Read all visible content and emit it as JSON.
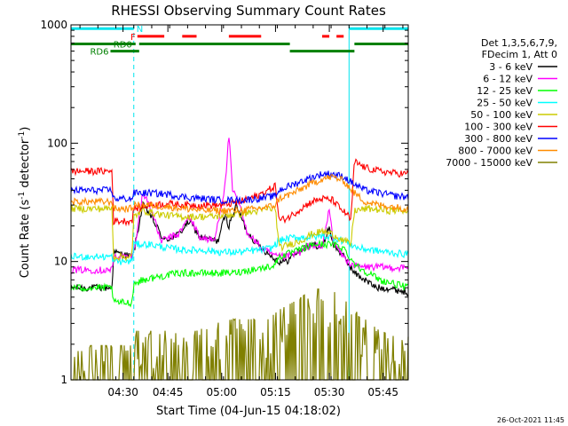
{
  "chart_data": {
    "type": "line",
    "title": "RHESSI Observing Summary Count Rates",
    "xlabel": "Start Time (04-Jun-15 04:18:02)",
    "ylabel": "Count Rate (s⁻¹ detector⁻¹)",
    "ylabel_main": "Count Rate (s",
    "ylabel_sup1": "-1",
    "ylabel_mid": " detector",
    "ylabel_sup2": "-1",
    "ylabel_end": ")",
    "yscale": "log",
    "xlim": [
      0,
      94
    ],
    "ylim": [
      1,
      1000
    ],
    "x_ticks": [
      {
        "x": 14.5,
        "label": "04:30"
      },
      {
        "x": 27,
        "label": "04:45"
      },
      {
        "x": 42,
        "label": "05:00"
      },
      {
        "x": 57,
        "label": "05:15"
      },
      {
        "x": 72,
        "label": "05:30"
      },
      {
        "x": 87,
        "label": "05:45"
      }
    ],
    "y_ticks": [
      {
        "y": 1,
        "label": "1"
      },
      {
        "y": 10,
        "label": "10"
      },
      {
        "y": 100,
        "label": "100"
      },
      {
        "y": 1000,
        "label": "1000"
      }
    ],
    "timestamp": "26-Oct-2021 11:45",
    "legend": {
      "header1": "Det 1,3,5,6,7,9,",
      "header2": "FDecim 1, Att 0",
      "placement": "right"
    },
    "vlines": {
      "solid": [
        0,
        77.5
      ],
      "dashed": [
        17.5,
        94
      ],
      "color": "#00e5ee"
    },
    "flags": [
      {
        "label": "N",
        "color": "#00e5ee",
        "y": 930,
        "segments": [
          [
            0,
            17.5
          ],
          [
            77.5,
            94
          ]
        ]
      },
      {
        "label": "F",
        "color": "#ff0000",
        "y": 800,
        "segments": [
          [
            18.5,
            26
          ],
          [
            31,
            35
          ],
          [
            44,
            53
          ],
          [
            70,
            72
          ],
          [
            74,
            76
          ]
        ]
      },
      {
        "label": "RD0",
        "color": "#008000",
        "y": 690,
        "segments": [
          [
            0,
            18
          ],
          [
            19,
            61
          ],
          [
            79,
            94
          ]
        ]
      },
      {
        "label": "RD6",
        "color": "#008000",
        "y": 600,
        "segments": [
          [
            11,
            19
          ],
          [
            61,
            79
          ]
        ]
      }
    ],
    "series": [
      {
        "name": "3 - 6 keV",
        "color": "#000000",
        "key": [
          [
            0,
            6
          ],
          [
            11.5,
            6
          ],
          [
            11.8,
            12
          ],
          [
            17,
            11
          ],
          [
            17.5,
            12
          ],
          [
            20,
            30
          ],
          [
            22,
            25
          ],
          [
            26,
            15
          ],
          [
            30,
            17
          ],
          [
            33,
            22
          ],
          [
            36,
            16
          ],
          [
            41,
            15
          ],
          [
            43,
            25
          ],
          [
            44,
            20
          ],
          [
            46,
            30
          ],
          [
            49,
            18
          ],
          [
            52,
            14
          ],
          [
            56,
            11
          ],
          [
            58,
            10
          ],
          [
            60,
            10
          ],
          [
            63,
            12
          ],
          [
            65,
            13
          ],
          [
            68,
            14
          ],
          [
            70,
            13
          ],
          [
            72,
            20
          ],
          [
            73,
            14
          ],
          [
            75,
            12
          ],
          [
            77,
            10
          ],
          [
            79,
            8
          ],
          [
            82,
            7
          ],
          [
            85,
            6
          ],
          [
            88,
            6
          ],
          [
            94,
            5.5
          ]
        ]
      },
      {
        "name": "6 - 12 keV",
        "color": "#ff00ff",
        "key": [
          [
            0,
            8.5
          ],
          [
            11.5,
            8.5
          ],
          [
            11.8,
            11
          ],
          [
            17,
            11
          ],
          [
            17.5,
            12
          ],
          [
            20,
            38
          ],
          [
            22,
            30
          ],
          [
            25,
            15
          ],
          [
            30,
            17
          ],
          [
            33,
            24
          ],
          [
            36,
            16
          ],
          [
            40,
            15
          ],
          [
            43,
            45
          ],
          [
            44,
            120
          ],
          [
            45,
            40
          ],
          [
            47,
            30
          ],
          [
            49,
            18
          ],
          [
            53,
            13
          ],
          [
            57,
            11
          ],
          [
            60,
            11
          ],
          [
            64,
            12
          ],
          [
            67,
            14
          ],
          [
            70,
            13
          ],
          [
            72,
            28
          ],
          [
            73,
            15
          ],
          [
            75,
            12
          ],
          [
            77,
            10
          ],
          [
            80,
            9
          ],
          [
            85,
            9
          ],
          [
            94,
            8.8
          ]
        ]
      },
      {
        "name": "12 - 25 keV",
        "color": "#00ff00",
        "key": [
          [
            0,
            6
          ],
          [
            11.5,
            6
          ],
          [
            11.8,
            4.5
          ],
          [
            17,
            4.5
          ],
          [
            17.5,
            6.5
          ],
          [
            20,
            7
          ],
          [
            25,
            7.5
          ],
          [
            30,
            8
          ],
          [
            35,
            8
          ],
          [
            40,
            8
          ],
          [
            45,
            8
          ],
          [
            50,
            8.5
          ],
          [
            55,
            9
          ],
          [
            57,
            9.5
          ],
          [
            58,
            11
          ],
          [
            62,
            12
          ],
          [
            65,
            13
          ],
          [
            68,
            14
          ],
          [
            70,
            14
          ],
          [
            73,
            14
          ],
          [
            76,
            13
          ],
          [
            78,
            10.5
          ],
          [
            80,
            9
          ],
          [
            83,
            8
          ],
          [
            86,
            7
          ],
          [
            90,
            6.5
          ],
          [
            94,
            6
          ]
        ]
      },
      {
        "name": "25 - 50 keV",
        "color": "#00ffff",
        "key": [
          [
            0,
            11
          ],
          [
            11.5,
            11
          ],
          [
            11.8,
            10
          ],
          [
            17,
            10
          ],
          [
            17.5,
            14
          ],
          [
            22,
            14
          ],
          [
            27,
            13
          ],
          [
            32,
            12.5
          ],
          [
            37,
            12.5
          ],
          [
            42,
            12
          ],
          [
            47,
            12
          ],
          [
            52,
            12.5
          ],
          [
            56,
            13
          ],
          [
            57,
            14
          ],
          [
            58,
            15
          ],
          [
            62,
            16
          ],
          [
            66,
            16
          ],
          [
            70,
            16.5
          ],
          [
            73,
            16
          ],
          [
            76,
            15
          ],
          [
            78,
            14
          ],
          [
            80,
            13
          ],
          [
            84,
            12.5
          ],
          [
            88,
            12
          ],
          [
            94,
            11.5
          ]
        ]
      },
      {
        "name": "50 - 100 keV",
        "color": "#cccc00",
        "key": [
          [
            0,
            28
          ],
          [
            11.5,
            28
          ],
          [
            11.8,
            11
          ],
          [
            17,
            11
          ],
          [
            17.5,
            24
          ],
          [
            20,
            27
          ],
          [
            25,
            25
          ],
          [
            30,
            24
          ],
          [
            35,
            24
          ],
          [
            40,
            24
          ],
          [
            45,
            25
          ],
          [
            50,
            26
          ],
          [
            55,
            28
          ],
          [
            57,
            28
          ],
          [
            58,
            13
          ],
          [
            61,
            14
          ],
          [
            64,
            15
          ],
          [
            67,
            17
          ],
          [
            70,
            18
          ],
          [
            73,
            17
          ],
          [
            76,
            15
          ],
          [
            78,
            14
          ],
          [
            79,
            27
          ],
          [
            83,
            28
          ],
          [
            88,
            27
          ],
          [
            94,
            27
          ]
        ]
      },
      {
        "name": "100 - 300 keV",
        "color": "#ff0000",
        "key": [
          [
            0,
            58
          ],
          [
            11.5,
            58
          ],
          [
            11.8,
            22
          ],
          [
            17,
            22
          ],
          [
            17.5,
            28
          ],
          [
            22,
            30
          ],
          [
            27,
            31
          ],
          [
            32,
            30
          ],
          [
            37,
            30
          ],
          [
            42,
            30
          ],
          [
            47,
            32
          ],
          [
            52,
            36
          ],
          [
            55,
            40
          ],
          [
            57,
            44
          ],
          [
            58,
            22
          ],
          [
            61,
            24
          ],
          [
            64,
            28
          ],
          [
            67,
            32
          ],
          [
            70,
            34
          ],
          [
            73,
            33
          ],
          [
            75,
            28
          ],
          [
            77,
            25
          ],
          [
            78,
            22
          ],
          [
            79,
            70
          ],
          [
            82,
            62
          ],
          [
            86,
            58
          ],
          [
            90,
            56
          ],
          [
            94,
            55
          ]
        ]
      },
      {
        "name": "300 - 800 keV",
        "color": "#0000ff",
        "key": [
          [
            0,
            40
          ],
          [
            11.5,
            40
          ],
          [
            11.8,
            34
          ],
          [
            17,
            34
          ],
          [
            17.5,
            38
          ],
          [
            22,
            38
          ],
          [
            27,
            37
          ],
          [
            32,
            35
          ],
          [
            37,
            34
          ],
          [
            42,
            33
          ],
          [
            47,
            33
          ],
          [
            52,
            34
          ],
          [
            55,
            35
          ],
          [
            57,
            36
          ],
          [
            58,
            40
          ],
          [
            62,
            45
          ],
          [
            66,
            50
          ],
          [
            70,
            55
          ],
          [
            73,
            55
          ],
          [
            76,
            52
          ],
          [
            79,
            45
          ],
          [
            82,
            40
          ],
          [
            86,
            38
          ],
          [
            90,
            36
          ],
          [
            94,
            35
          ]
        ]
      },
      {
        "name": "800 - 7000 keV",
        "color": "#ff8c00",
        "key": [
          [
            0,
            32
          ],
          [
            11.5,
            32
          ],
          [
            11.8,
            28
          ],
          [
            17,
            28
          ],
          [
            17.5,
            30
          ],
          [
            22,
            30
          ],
          [
            27,
            29
          ],
          [
            32,
            28
          ],
          [
            37,
            27
          ],
          [
            42,
            27
          ],
          [
            47,
            27
          ],
          [
            52,
            28
          ],
          [
            55,
            29
          ],
          [
            57,
            30
          ],
          [
            58,
            34
          ],
          [
            62,
            38
          ],
          [
            66,
            44
          ],
          [
            70,
            50
          ],
          [
            73,
            52
          ],
          [
            76,
            48
          ],
          [
            79,
            38
          ],
          [
            82,
            32
          ],
          [
            86,
            30
          ],
          [
            90,
            29
          ],
          [
            94,
            28
          ]
        ]
      },
      {
        "name": "7000 - 15000 keV",
        "color": "#808000",
        "key": [
          [
            0,
            1.5
          ],
          [
            11.5,
            1.5
          ],
          [
            12,
            1.5
          ],
          [
            17,
            1.5
          ],
          [
            18,
            2
          ],
          [
            25,
            2
          ],
          [
            30,
            2
          ],
          [
            35,
            2
          ],
          [
            40,
            2.3
          ],
          [
            45,
            2.5
          ],
          [
            50,
            2.5
          ],
          [
            55,
            2.5
          ],
          [
            58,
            3
          ],
          [
            62,
            3.5
          ],
          [
            65,
            4
          ],
          [
            68,
            4.5
          ],
          [
            72,
            4.5
          ],
          [
            75,
            4
          ],
          [
            77,
            3.5
          ],
          [
            79,
            3
          ],
          [
            82,
            2.5
          ],
          [
            86,
            2
          ],
          [
            90,
            1.8
          ],
          [
            94,
            1.8
          ]
        ]
      }
    ]
  }
}
